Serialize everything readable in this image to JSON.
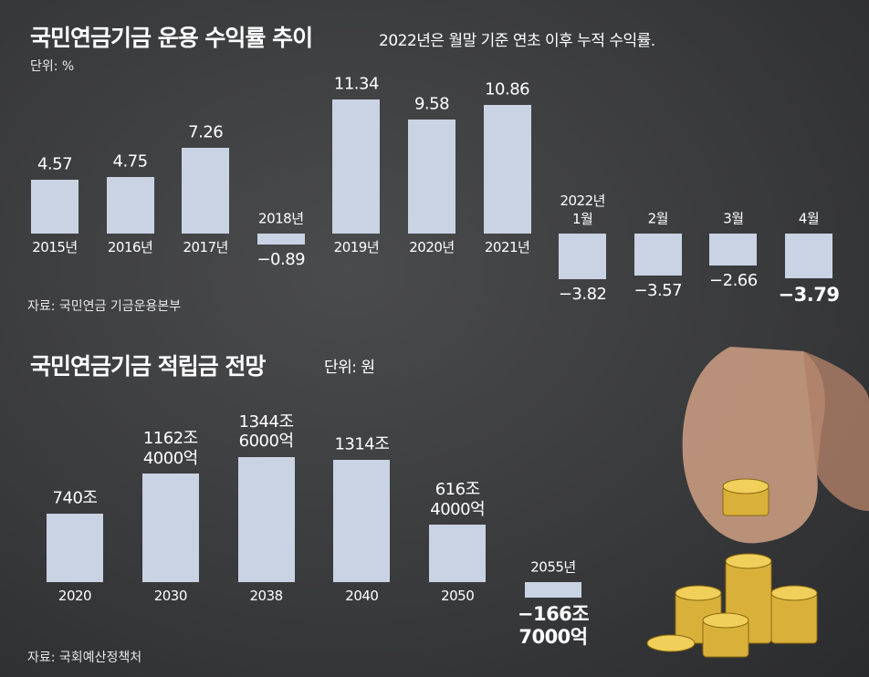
{
  "chart_data": [
    {
      "type": "bar",
      "title": "국민연금기금 운용 수익률 추이",
      "subtitle": "2022년은 월말 기준 연초 이후 누적 수익률.",
      "unit": "단위: %",
      "source": "자료: 국민연금 기금운용본부",
      "color": "#c9d3e3",
      "categories": [
        "2015년",
        "2016년",
        "2017년",
        "2018년",
        "2019년",
        "2020년",
        "2021년",
        "2022년\n1월",
        "2월",
        "3월",
        "4월"
      ],
      "values": [
        4.57,
        4.75,
        7.26,
        -0.89,
        11.34,
        9.58,
        10.86,
        -3.82,
        -3.57,
        -2.66,
        -3.79
      ],
      "value_labels": [
        "4.57",
        "4.75",
        "7.26",
        "−0.89",
        "11.34",
        "9.58",
        "10.86",
        "−3.82",
        "−3.57",
        "−2.66",
        "−3.79"
      ]
    },
    {
      "type": "bar",
      "title": "국민연금기금 적립금 전망",
      "unit": "단위: 원",
      "source": "자료: 국회예산정책처",
      "color": "#c9d3e3",
      "categories": [
        "2020",
        "2030",
        "2038",
        "2040",
        "2050",
        "2055년"
      ],
      "values": [
        740,
        1162.4,
        1344.6,
        1314,
        616.4,
        -166.7
      ],
      "value_labels": [
        "740조",
        "1162조\n4000억",
        "1344조\n6000억",
        "1314조",
        "616조\n4000억",
        "−166조\n7000억"
      ]
    }
  ]
}
